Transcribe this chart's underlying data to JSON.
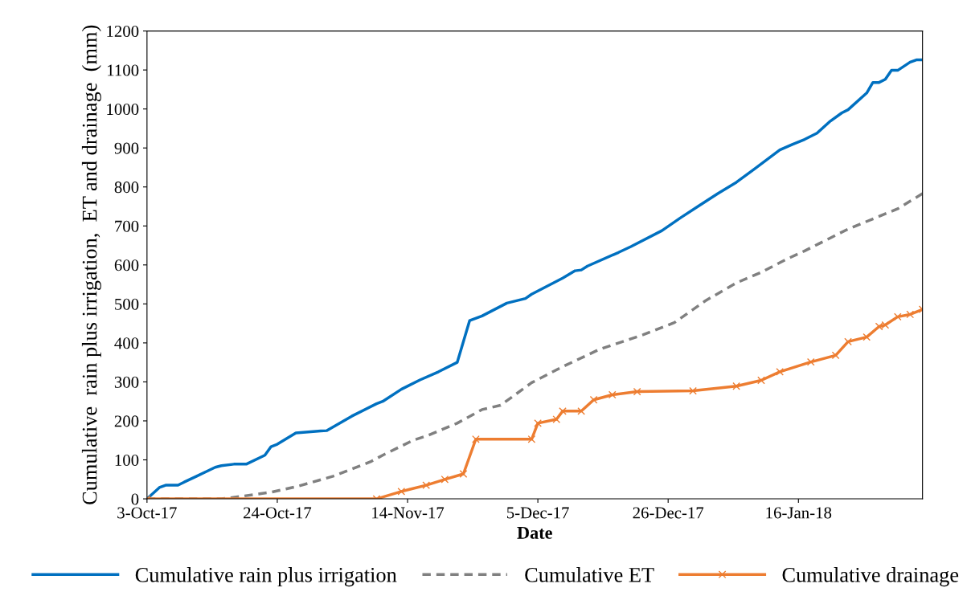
{
  "chart_data": {
    "type": "line",
    "xlabel": "Date",
    "ylabel": "Cumulative  rain plus irrigation,  ET and drainage  (mm)",
    "xlim": [
      "2017-10-03",
      "2018-02-05"
    ],
    "xticks": [
      {
        "value": "2017-10-03",
        "label": "3-Oct-17"
      },
      {
        "value": "2017-10-24",
        "label": "24-Oct-17"
      },
      {
        "value": "2017-11-14",
        "label": "14-Nov-17"
      },
      {
        "value": "2017-12-05",
        "label": "5-Dec-17"
      },
      {
        "value": "2017-12-26",
        "label": "26-Dec-17"
      },
      {
        "value": "2018-01-16",
        "label": "16-Jan-18"
      }
    ],
    "ylim": [
      0,
      1200
    ],
    "yticks": [
      0,
      100,
      200,
      300,
      400,
      500,
      600,
      700,
      800,
      900,
      1000,
      1100,
      1200
    ],
    "grid": false,
    "legend": "bottom",
    "series": [
      {
        "name": "Cumulative rain plus irrigation",
        "color": "#0070c0",
        "line_style": "solid",
        "marker": "none",
        "x": [
          "2017-10-03",
          "2017-10-05",
          "2017-10-06",
          "2017-10-08",
          "2017-10-09",
          "2017-10-11",
          "2017-10-14",
          "2017-10-15",
          "2017-10-17",
          "2017-10-19",
          "2017-10-22",
          "2017-10-23",
          "2017-10-24",
          "2017-10-27",
          "2017-10-31",
          "2017-11-01",
          "2017-11-05",
          "2017-11-09",
          "2017-11-10",
          "2017-11-13",
          "2017-11-16",
          "2017-11-19",
          "2017-11-22",
          "2017-11-24",
          "2017-11-26",
          "2017-11-30",
          "2017-12-03",
          "2017-12-04",
          "2017-12-09",
          "2017-12-11",
          "2017-12-12",
          "2017-12-13",
          "2017-12-18",
          "2017-12-20",
          "2017-12-25",
          "2017-12-28",
          "2017-12-31",
          "2018-01-03",
          "2018-01-06",
          "2018-01-09",
          "2018-01-13",
          "2018-01-15",
          "2018-01-17",
          "2018-01-19",
          "2018-01-21",
          "2018-01-23",
          "2018-01-24",
          "2018-01-27",
          "2018-01-28",
          "2018-01-29",
          "2018-01-30",
          "2018-01-31",
          "2018-02-01",
          "2018-02-03",
          "2018-02-04",
          "2018-02-05"
        ],
        "values": [
          0,
          29,
          35,
          35,
          43,
          58,
          81,
          85,
          89,
          89,
          112,
          134,
          140,
          169,
          174,
          175,
          212,
          244,
          250,
          281,
          305,
          326,
          350,
          457,
          469,
          502,
          514,
          525,
          566,
          585,
          587,
          597,
          632,
          647,
          688,
          721,
          752,
          783,
          812,
          847,
          895,
          909,
          922,
          938,
          967,
          990,
          998,
          1041,
          1068,
          1068,
          1076,
          1099,
          1099,
          1120,
          1126,
          1126
        ]
      },
      {
        "name": "Cumulative ET",
        "color": "#808080",
        "line_style": "dashed",
        "marker": "none",
        "x": [
          "2017-10-03",
          "2017-10-15",
          "2017-10-18",
          "2017-10-23",
          "2017-10-27",
          "2017-11-02",
          "2017-11-08",
          "2017-11-10",
          "2017-11-15",
          "2017-11-17",
          "2017-11-19",
          "2017-11-22",
          "2017-11-26",
          "2017-11-29",
          "2017-12-04",
          "2017-12-09",
          "2017-12-15",
          "2017-12-22",
          "2017-12-27",
          "2018-01-01",
          "2018-01-06",
          "2018-01-10",
          "2018-01-14",
          "2018-01-17",
          "2018-01-24",
          "2018-02-01",
          "2018-02-05"
        ],
        "values": [
          0,
          0,
          6,
          17,
          31,
          58,
          95,
          112,
          151,
          161,
          174,
          194,
          229,
          240,
          298,
          339,
          384,
          421,
          452,
          508,
          554,
          581,
          614,
          636,
          692,
          744,
          783
        ]
      },
      {
        "name": "Cumulative drainage",
        "color": "#ed7d31",
        "line_style": "solid",
        "marker": "cross",
        "x": [
          "2017-10-03",
          "2017-11-09",
          "2017-11-13",
          "2017-11-17",
          "2017-11-20",
          "2017-11-23",
          "2017-11-25",
          "2017-12-04",
          "2017-12-05",
          "2017-12-08",
          "2017-12-09",
          "2017-12-12",
          "2017-12-14",
          "2017-12-17",
          "2017-12-21",
          "2017-12-30",
          "2018-01-06",
          "2018-01-10",
          "2018-01-13",
          "2018-01-18",
          "2018-01-22",
          "2018-01-24",
          "2018-01-27",
          "2018-01-29",
          "2018-01-30",
          "2018-02-01",
          "2018-02-03",
          "2018-02-05"
        ],
        "values": [
          0,
          0,
          19,
          35,
          50,
          64,
          153,
          153,
          194,
          204,
          225,
          225,
          254,
          267,
          275,
          277,
          289,
          304,
          326,
          351,
          368,
          403,
          415,
          442,
          446,
          467,
          473,
          486
        ]
      }
    ]
  }
}
